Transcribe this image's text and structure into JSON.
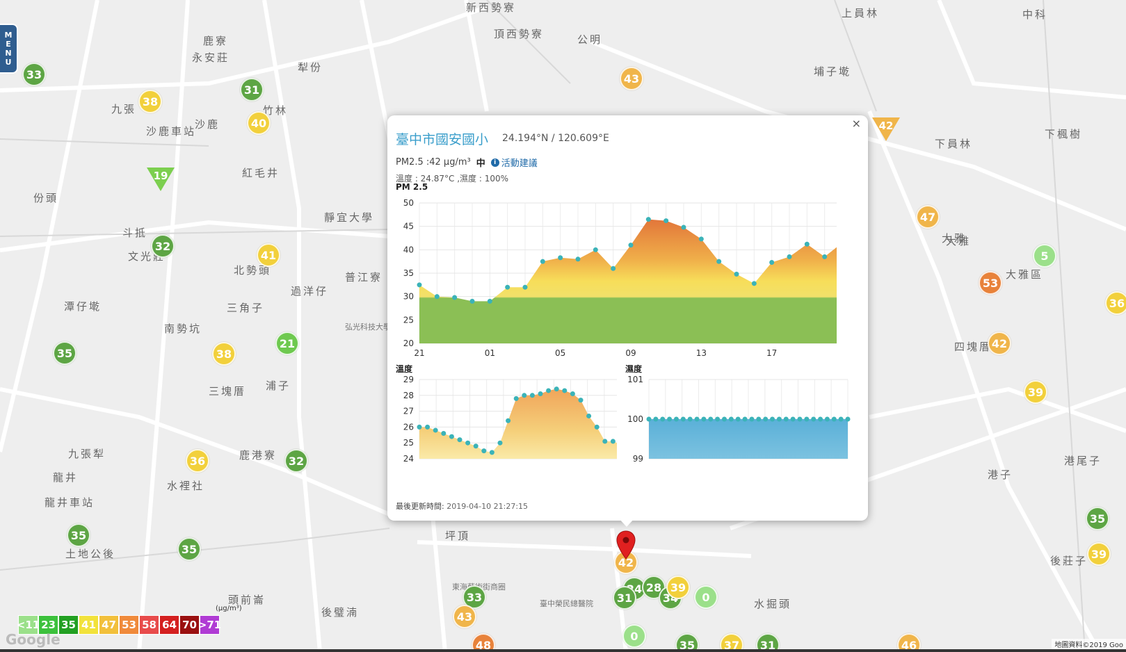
{
  "menu": {
    "label": [
      "M",
      "E",
      "N",
      "U"
    ]
  },
  "map_places": [
    {
      "name": "新西勢寮"
    },
    {
      "name": "頂西勢寮"
    },
    {
      "name": "公明"
    },
    {
      "name": "上員林"
    },
    {
      "name": "埔子墘"
    },
    {
      "name": "鹿寮"
    },
    {
      "name": "永安莊"
    },
    {
      "name": "犁份"
    },
    {
      "name": "九張"
    },
    {
      "name": "沙鹿"
    },
    {
      "name": "竹林"
    },
    {
      "name": "紅毛井"
    },
    {
      "name": "份頭"
    },
    {
      "name": "斗抵"
    },
    {
      "name": "文光莊"
    },
    {
      "name": "北勢頭"
    },
    {
      "name": "過洋仔"
    },
    {
      "name": "普江寮"
    },
    {
      "name": "三角子"
    },
    {
      "name": "潭仔墘"
    },
    {
      "name": "南勢坑"
    },
    {
      "name": "三塊厝"
    },
    {
      "name": "浦子"
    },
    {
      "name": "九張犁"
    },
    {
      "name": "龍井"
    },
    {
      "name": "水裡社"
    },
    {
      "name": "鹿港寮"
    },
    {
      "name": "頭前崙"
    },
    {
      "name": "後璧湳"
    },
    {
      "name": "坪頂"
    },
    {
      "name": "土地公後"
    },
    {
      "name": "水掘頭"
    },
    {
      "name": "大雅"
    },
    {
      "name": "大雅區"
    },
    {
      "name": "下員林"
    },
    {
      "name": "下楓樹"
    },
    {
      "name": "四塊厝"
    },
    {
      "name": "港子"
    },
    {
      "name": "港尾子"
    },
    {
      "name": "後莊子"
    },
    {
      "name": "沙鹿車站"
    },
    {
      "name": "靜宜大學"
    },
    {
      "name": "弘光科技大學"
    },
    {
      "name": "東海藝術街商圈"
    },
    {
      "name": "臺中榮民總醫院"
    },
    {
      "name": "龍井車站"
    },
    {
      "name": "中科"
    },
    {
      "name": "大雅"
    }
  ],
  "markers": [
    {
      "value": "33",
      "color": "#5da544"
    },
    {
      "value": "38",
      "color": "#f2d03b"
    },
    {
      "value": "31",
      "color": "#5da544"
    },
    {
      "value": "40",
      "color": "#f2d03b"
    },
    {
      "value": "19",
      "color": "#7ccf4f",
      "shape": "tri"
    },
    {
      "value": "32",
      "color": "#5da544"
    },
    {
      "value": "41",
      "color": "#f2d03b"
    },
    {
      "value": "21",
      "color": "#6ec94f"
    },
    {
      "value": "35",
      "color": "#5da544"
    },
    {
      "value": "38",
      "color": "#f2d03b"
    },
    {
      "value": "36",
      "color": "#f2d03b"
    },
    {
      "value": "32",
      "color": "#5da544"
    },
    {
      "value": "35",
      "color": "#5da544"
    },
    {
      "value": "35",
      "color": "#5da544"
    },
    {
      "value": "43",
      "color": "#f0b54a"
    },
    {
      "value": "42",
      "color": "#f0b54a",
      "shape": "tri"
    },
    {
      "value": "47",
      "color": "#f0b54a"
    },
    {
      "value": "5",
      "color": "#9be08a"
    },
    {
      "value": "53",
      "color": "#e8823a"
    },
    {
      "value": "42",
      "color": "#f0b54a"
    },
    {
      "value": "39",
      "color": "#f2d03b"
    },
    {
      "value": "36",
      "color": "#f2d03b"
    },
    {
      "value": "35",
      "color": "#5da544"
    },
    {
      "value": "39",
      "color": "#f2d03b"
    },
    {
      "value": "33",
      "color": "#5da544"
    },
    {
      "value": "43",
      "color": "#f0b54a"
    },
    {
      "value": "42",
      "color": "#f0b54a"
    },
    {
      "value": "24",
      "color": "#5da544"
    },
    {
      "value": "28",
      "color": "#5da544"
    },
    {
      "value": "34",
      "color": "#5da544"
    },
    {
      "value": "0",
      "color": "#9be08a"
    },
    {
      "value": "31",
      "color": "#5da544"
    },
    {
      "value": "0",
      "color": "#9be08a"
    },
    {
      "value": "35",
      "color": "#5da544"
    },
    {
      "value": "37",
      "color": "#f2d03b"
    },
    {
      "value": "31",
      "color": "#5da544"
    },
    {
      "value": "46",
      "color": "#f0b54a"
    },
    {
      "value": "48",
      "color": "#e8823a"
    },
    {
      "value": "39",
      "color": "#f2d03b"
    }
  ],
  "legend": {
    "unit": "(μg/m³)",
    "items": [
      {
        "label": "<11",
        "color": "#9be08a"
      },
      {
        "label": "23",
        "color": "#3cc13c"
      },
      {
        "label": "35",
        "color": "#22a022"
      },
      {
        "label": "41",
        "color": "#f2e23b"
      },
      {
        "label": "47",
        "color": "#f2c03b"
      },
      {
        "label": "53",
        "color": "#f08a3b"
      },
      {
        "label": "58",
        "color": "#e84b4b"
      },
      {
        "label": "64",
        "color": "#d42020"
      },
      {
        "label": "70",
        "color": "#9a1010"
      },
      {
        "label": ">71",
        "color": "#b03bd4"
      }
    ]
  },
  "attribution": "地圖資料©2019 Goo",
  "google": "Google",
  "popup": {
    "close": "×",
    "station": "臺中市國安國小",
    "coords": "24.194°N / 120.609°E",
    "pm_text": "PM2.5 :42 μg/m³",
    "pm_level": "中",
    "advice": "活動建議",
    "weather": "溫度 : 24.87°C ,濕度 : 100%",
    "pm_title": "PM 2.5",
    "temp_title": "溫度",
    "hum_title": "濕度",
    "last_update_label": "最後更新時間:",
    "last_update_value": "2019-04-10 21:27:15"
  },
  "chart_data": [
    {
      "type": "area",
      "title": "PM 2.5",
      "x_ticks": [
        "21",
        "01",
        "05",
        "09",
        "13",
        "17",
        "21"
      ],
      "ylim": [
        20,
        50
      ],
      "y_ticks": [
        20,
        25,
        30,
        35,
        40,
        45,
        50
      ],
      "values": [
        32.5,
        30,
        29.8,
        29,
        29,
        32,
        32,
        37.5,
        38.3,
        38,
        40,
        36,
        41,
        46.5,
        46.2,
        44.8,
        42.3,
        37.5,
        34.8,
        32.8,
        37.3,
        38.5,
        41.2,
        38.5,
        41.5
      ],
      "grid": true
    },
    {
      "type": "area",
      "title": "溫度",
      "ylim": [
        24,
        29
      ],
      "y_ticks": [
        24,
        25,
        26,
        27,
        28,
        29
      ],
      "values": [
        26,
        26,
        25.8,
        25.6,
        25.4,
        25.2,
        25,
        24.8,
        24.5,
        24.4,
        25,
        26.4,
        27.8,
        28,
        28,
        28.1,
        28.3,
        28.4,
        28.3,
        28.1,
        27.7,
        26.7,
        26,
        25.1,
        25.1,
        24.9
      ],
      "grid": true
    },
    {
      "type": "area",
      "title": "濕度",
      "ylim": [
        99,
        101
      ],
      "y_ticks": [
        99,
        100,
        101
      ],
      "values": [
        100,
        100,
        100,
        100,
        100,
        100,
        100,
        100,
        100,
        100,
        100,
        100,
        100,
        100,
        100,
        100,
        100,
        100,
        100,
        100,
        100,
        100,
        100,
        100,
        100,
        100,
        100,
        100,
        100,
        100
      ],
      "grid": true
    }
  ]
}
